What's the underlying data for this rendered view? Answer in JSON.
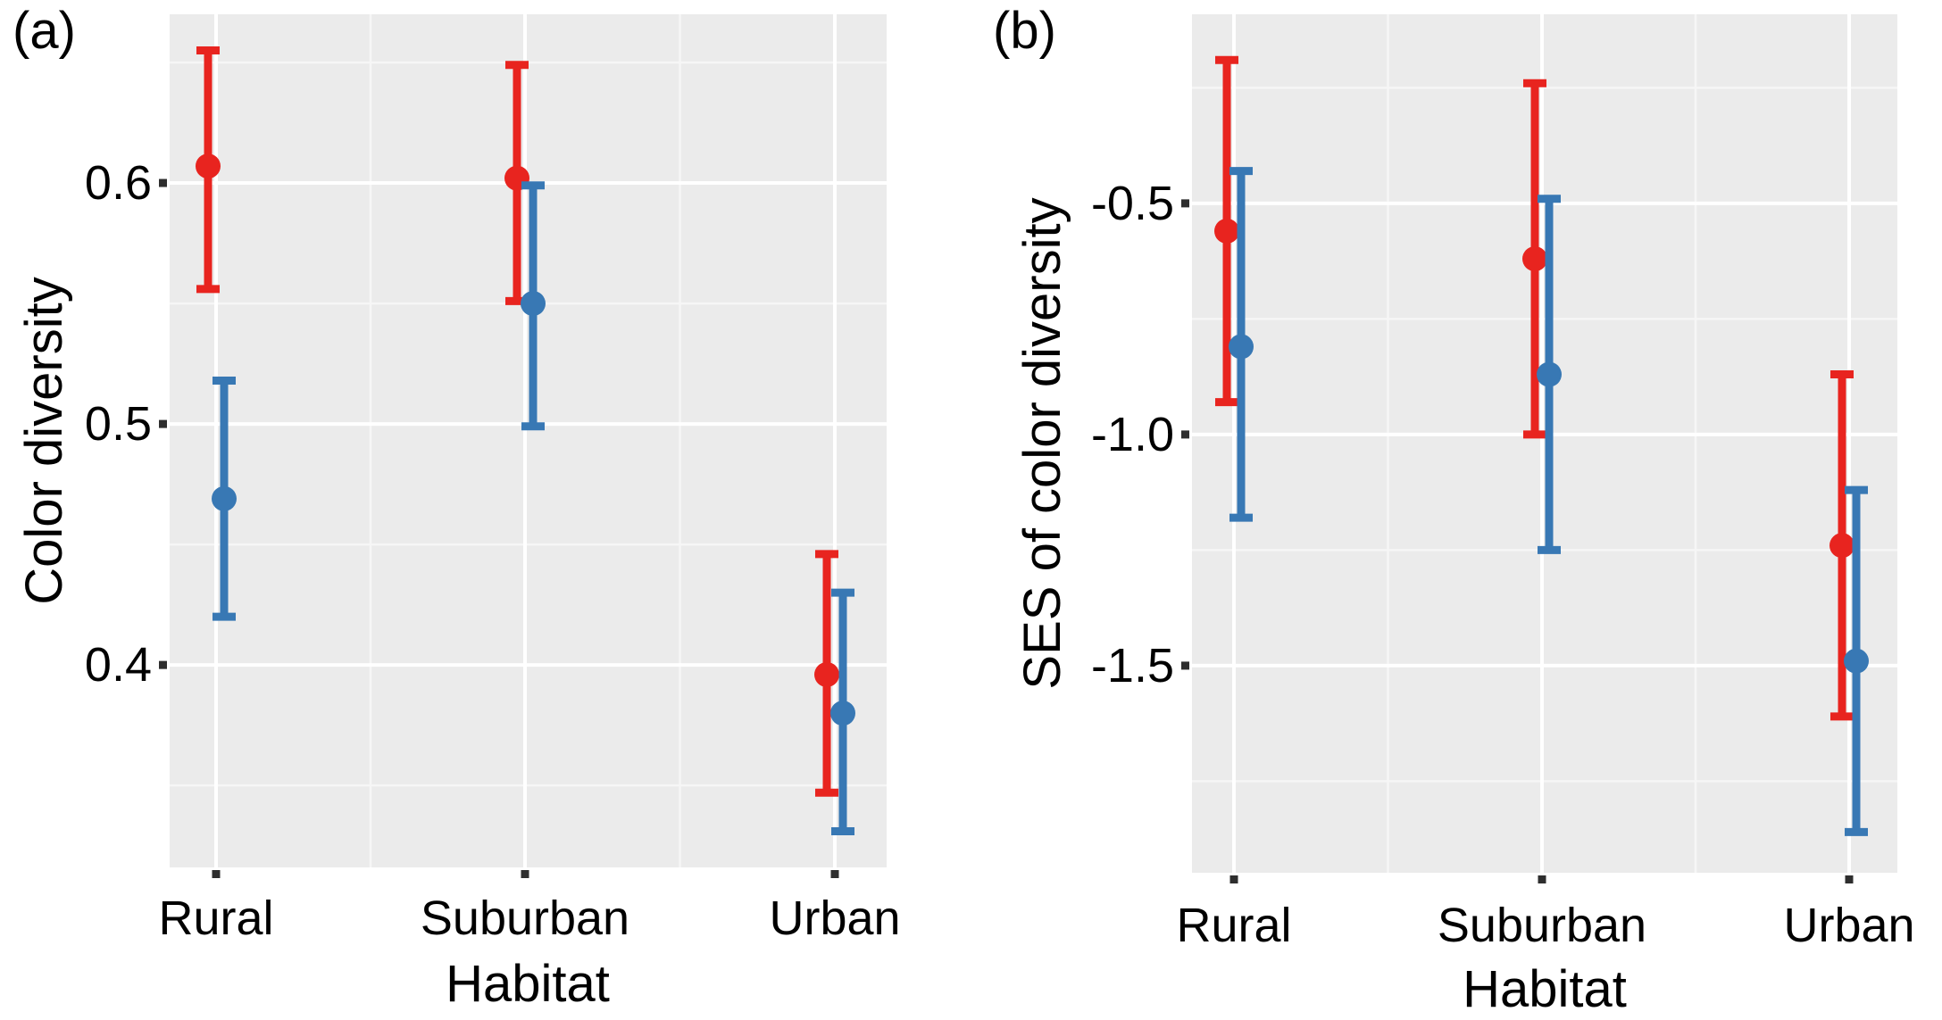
{
  "style": {
    "background": "#ffffff",
    "panel_bg": "#ebebeb",
    "grid_major": "#ffffff",
    "grid_minor": "#f6f6f6",
    "tick_color": "#2e2e2e",
    "text_color": "#000000",
    "red": "#e8241f",
    "blue": "#3878b4"
  },
  "chart_data": [
    {
      "panel": "(a)",
      "type": "scatter",
      "subtype": "point-range (mean with error bars), dodged by series",
      "ylabel": "Color diversity",
      "xlabel": "Habitat",
      "categories": [
        "Rural",
        "Suburban",
        "Urban"
      ],
      "yticks": {
        "labels": [
          "0.6",
          "0.5",
          "0.4"
        ],
        "values": [
          0.6,
          0.5,
          0.4
        ]
      },
      "yticks_minor": [
        0.65,
        0.55,
        0.45,
        0.35
      ],
      "ylim": [
        0.316,
        0.67
      ],
      "grid": "major+minor, white on gray panel",
      "legend": "none",
      "series": [
        {
          "name": "red",
          "color": "#e8241f",
          "means": [
            0.607,
            0.602,
            0.396
          ],
          "ci_low": [
            0.556,
            0.551,
            0.347
          ],
          "ci_high": [
            0.655,
            0.649,
            0.446
          ]
        },
        {
          "name": "blue",
          "color": "#3878b4",
          "means": [
            0.469,
            0.55,
            0.38
          ],
          "ci_low": [
            0.42,
            0.499,
            0.331
          ],
          "ci_high": [
            0.518,
            0.599,
            0.43
          ]
        }
      ]
    },
    {
      "panel": "(b)",
      "type": "scatter",
      "subtype": "point-range (mean with error bars), dodged by series",
      "ylabel": "SES of color diversity",
      "xlabel": "Habitat",
      "categories": [
        "Rural",
        "Suburban",
        "Urban"
      ],
      "yticks": {
        "labels": [
          "-0.5",
          "-1.0",
          "-1.5"
        ],
        "values": [
          -0.5,
          -1.0,
          -1.5
        ]
      },
      "yticks_minor": [
        -0.25,
        -0.75,
        -1.25,
        -1.75
      ],
      "ylim": [
        -1.948,
        -0.091
      ],
      "grid": "major+minor, white on gray panel",
      "legend": "none",
      "series": [
        {
          "name": "red",
          "color": "#e8241f",
          "means": [
            -0.56,
            -0.62,
            -1.24
          ],
          "ci_low": [
            -0.93,
            -1.0,
            -1.61
          ],
          "ci_high": [
            -0.19,
            -0.24,
            -0.87
          ]
        },
        {
          "name": "blue",
          "color": "#3878b4",
          "means": [
            -0.81,
            -0.87,
            -1.49
          ],
          "ci_low": [
            -1.18,
            -1.25,
            -1.86
          ],
          "ci_high": [
            -0.43,
            -0.49,
            -1.12
          ]
        }
      ]
    }
  ]
}
